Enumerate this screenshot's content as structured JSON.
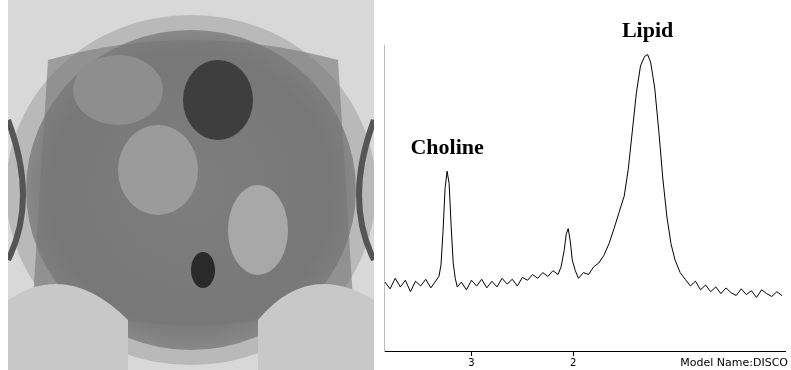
{
  "chart_data": {
    "type": "line",
    "annotations": [
      "Choline",
      "Lipid"
    ],
    "caption": "Model Name:DISCO",
    "x": [
      3.85,
      3.8,
      3.75,
      3.7,
      3.65,
      3.6,
      3.55,
      3.5,
      3.45,
      3.4,
      3.36,
      3.32,
      3.3,
      3.28,
      3.26,
      3.24,
      3.22,
      3.2,
      3.18,
      3.16,
      3.14,
      3.1,
      3.05,
      3.0,
      2.95,
      2.9,
      2.85,
      2.8,
      2.75,
      2.7,
      2.65,
      2.6,
      2.55,
      2.5,
      2.45,
      2.4,
      2.35,
      2.3,
      2.25,
      2.2,
      2.15,
      2.12,
      2.09,
      2.07,
      2.05,
      2.03,
      2.01,
      1.98,
      1.95,
      1.9,
      1.85,
      1.8,
      1.75,
      1.7,
      1.65,
      1.6,
      1.55,
      1.5,
      1.46,
      1.42,
      1.38,
      1.34,
      1.3,
      1.27,
      1.24,
      1.2,
      1.16,
      1.12,
      1.08,
      1.04,
      1.0,
      0.95,
      0.9,
      0.85,
      0.8,
      0.75,
      0.7,
      0.65,
      0.6,
      0.55,
      0.5,
      0.45,
      0.4,
      0.35,
      0.3,
      0.25,
      0.2,
      0.15,
      0.1,
      0.05,
      0.0,
      -0.05
    ],
    "values": [
      2,
      -5,
      6,
      -3,
      4,
      -8,
      3,
      -2,
      5,
      -4,
      2,
      8,
      20,
      55,
      100,
      118,
      105,
      60,
      22,
      6,
      -3,
      2,
      -6,
      4,
      -2,
      5,
      -4,
      3,
      -3,
      6,
      0,
      5,
      -2,
      7,
      4,
      10,
      6,
      12,
      8,
      14,
      10,
      18,
      35,
      52,
      58,
      45,
      25,
      14,
      6,
      12,
      10,
      18,
      22,
      30,
      42,
      58,
      75,
      92,
      120,
      160,
      200,
      228,
      238,
      240,
      232,
      205,
      160,
      110,
      70,
      42,
      25,
      12,
      5,
      -2,
      3,
      -6,
      -1,
      -8,
      -3,
      -10,
      -4,
      -9,
      -12,
      -5,
      -11,
      -7,
      -14,
      -6,
      -10,
      -13,
      -8,
      -12
    ],
    "color": "#000000",
    "xlim": [
      3.86,
      -0.08
    ],
    "xticks": [
      3,
      2
    ],
    "ylim": [
      -70,
      250
    ],
    "tick_labels": "x",
    "grid": false
  }
}
